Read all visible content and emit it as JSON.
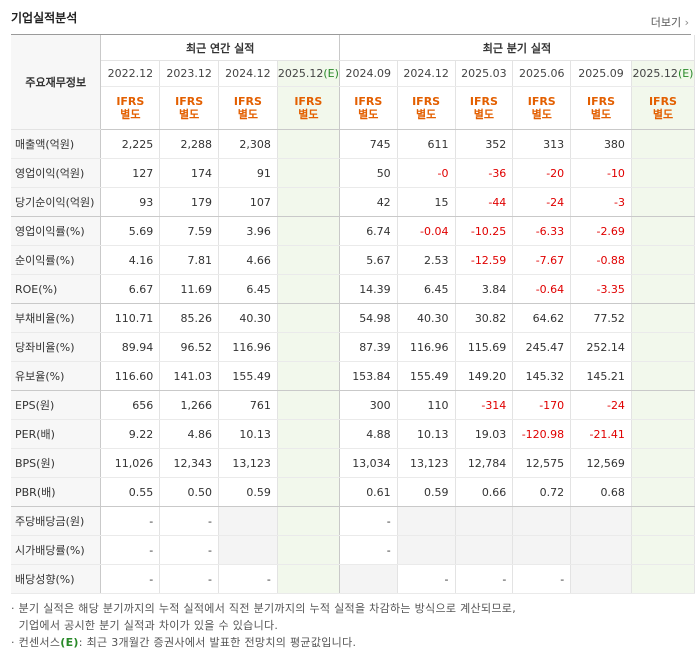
{
  "header": {
    "title": "기업실적분석",
    "more": "더보기"
  },
  "table": {
    "label_head": "주요재무정보",
    "group_annual": "최근 연간 실적",
    "group_quarter": "최근 분기 실적",
    "periods": [
      "2022.12",
      "2023.12",
      "2024.12",
      "2025.12(E)",
      "2024.09",
      "2024.12",
      "2025.03",
      "2025.06",
      "2025.09",
      "2025.12(E)"
    ],
    "ifrs": [
      "IFRS 별도",
      "IFRS 별도",
      "IFRS 별도",
      "IFRS 별도",
      "IFRS 별도",
      "IFRS 별도",
      "IFRS 별도",
      "IFRS 별도",
      "IFRS 별도",
      "IFRS 별도"
    ],
    "rows": [
      {
        "label": "매출액(억원)",
        "v": [
          "2,225",
          "2,288",
          "2,308",
          "",
          "745",
          "611",
          "352",
          "313",
          "380",
          ""
        ]
      },
      {
        "label": "영업이익(억원)",
        "v": [
          "127",
          "174",
          "91",
          "",
          "50",
          "-0",
          "-36",
          "-20",
          "-10",
          ""
        ]
      },
      {
        "label": "당기순이익(억원)",
        "v": [
          "93",
          "179",
          "107",
          "",
          "42",
          "15",
          "-44",
          "-24",
          "-3",
          ""
        ]
      },
      {
        "label": "영업이익률(%)",
        "v": [
          "5.69",
          "7.59",
          "3.96",
          "",
          "6.74",
          "-0.04",
          "-10.25",
          "-6.33",
          "-2.69",
          ""
        ]
      },
      {
        "label": "순이익률(%)",
        "v": [
          "4.16",
          "7.81",
          "4.66",
          "",
          "5.67",
          "2.53",
          "-12.59",
          "-7.67",
          "-0.88",
          ""
        ]
      },
      {
        "label": "ROE(%)",
        "v": [
          "6.67",
          "11.69",
          "6.45",
          "",
          "14.39",
          "6.45",
          "3.84",
          "-0.64",
          "-3.35",
          ""
        ]
      },
      {
        "label": "부채비율(%)",
        "v": [
          "110.71",
          "85.26",
          "40.30",
          "",
          "54.98",
          "40.30",
          "30.82",
          "64.62",
          "77.52",
          ""
        ]
      },
      {
        "label": "당좌비율(%)",
        "v": [
          "89.94",
          "96.52",
          "116.96",
          "",
          "87.39",
          "116.96",
          "115.69",
          "245.47",
          "252.14",
          ""
        ]
      },
      {
        "label": "유보율(%)",
        "v": [
          "116.60",
          "141.03",
          "155.49",
          "",
          "153.84",
          "155.49",
          "149.20",
          "145.32",
          "145.21",
          ""
        ]
      },
      {
        "label": "EPS(원)",
        "v": [
          "656",
          "1,266",
          "761",
          "",
          "300",
          "110",
          "-314",
          "-170",
          "-24",
          ""
        ]
      },
      {
        "label": "PER(배)",
        "v": [
          "9.22",
          "4.86",
          "10.13",
          "",
          "4.88",
          "10.13",
          "19.03",
          "-120.98",
          "-21.41",
          ""
        ]
      },
      {
        "label": "BPS(원)",
        "v": [
          "11,026",
          "12,343",
          "13,123",
          "",
          "13,034",
          "13,123",
          "12,784",
          "12,575",
          "12,569",
          ""
        ]
      },
      {
        "label": "PBR(배)",
        "v": [
          "0.55",
          "0.50",
          "0.59",
          "",
          "0.61",
          "0.59",
          "0.66",
          "0.72",
          "0.68",
          ""
        ]
      },
      {
        "label": "주당배당금(원)",
        "v": [
          "-",
          "-",
          "",
          "",
          "-",
          "",
          "",
          "",
          "",
          ""
        ]
      },
      {
        "label": "시가배당률(%)",
        "v": [
          "-",
          "-",
          "",
          "",
          "-",
          "",
          "",
          "",
          "",
          ""
        ]
      },
      {
        "label": "배당성향(%)",
        "v": [
          "-",
          "-",
          "-",
          "",
          "",
          "-",
          "-",
          "-",
          "",
          ""
        ]
      }
    ]
  },
  "notes": {
    "line1": "분기 실적은 해당 분기까지의 누적 실적에서 직전 분기까지의 누적 실적을 차감하는 방식으로 계산되므로,",
    "line2": "기업에서 공시한 분기 실적과 차이가 있을 수 있습니다.",
    "line3_prefix": "컨센서스",
    "line3_mark": "(E)",
    "line3_suffix": ": 최근 3개월간 증권사에서 발표한 전망치의 평균값입니다."
  }
}
